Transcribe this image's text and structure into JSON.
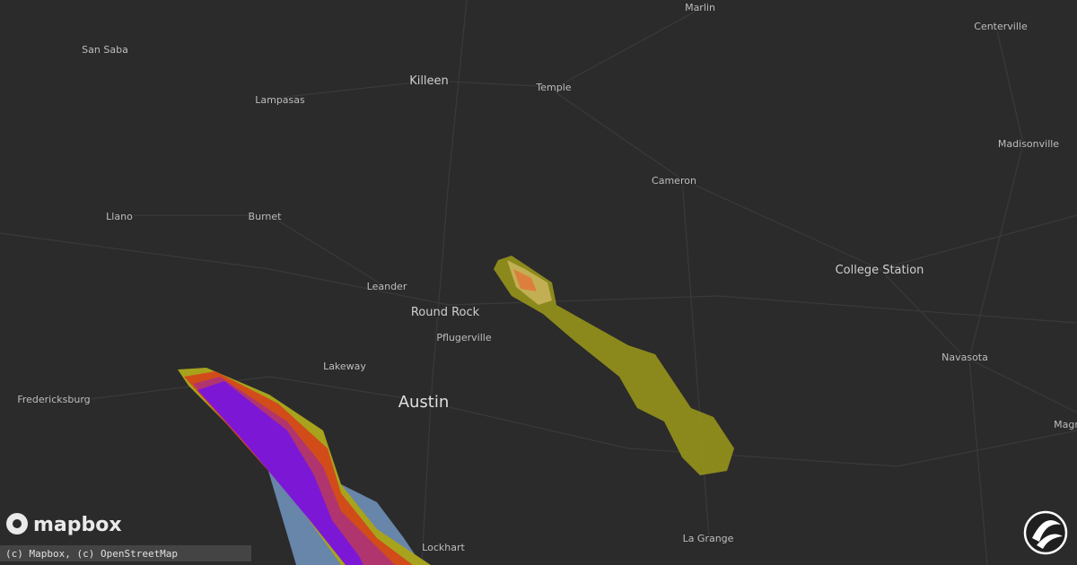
{
  "map": {
    "labels": [
      "Marlin",
      "Centerville",
      "San Saba",
      "Killeen",
      "Temple",
      "Lampasas",
      "Madisonville",
      "Cameron",
      "Llano",
      "Burnet",
      "College Station",
      "Leander",
      "Round Rock",
      "Pflugerville",
      "Lakeway",
      "Navasota",
      "Fredericksburg",
      "Austin",
      "Lockhart",
      "La Grange",
      "Magr"
    ]
  },
  "logo": "mapbox",
  "attribution": "(c) Mapbox, (c) OpenStreetMap"
}
